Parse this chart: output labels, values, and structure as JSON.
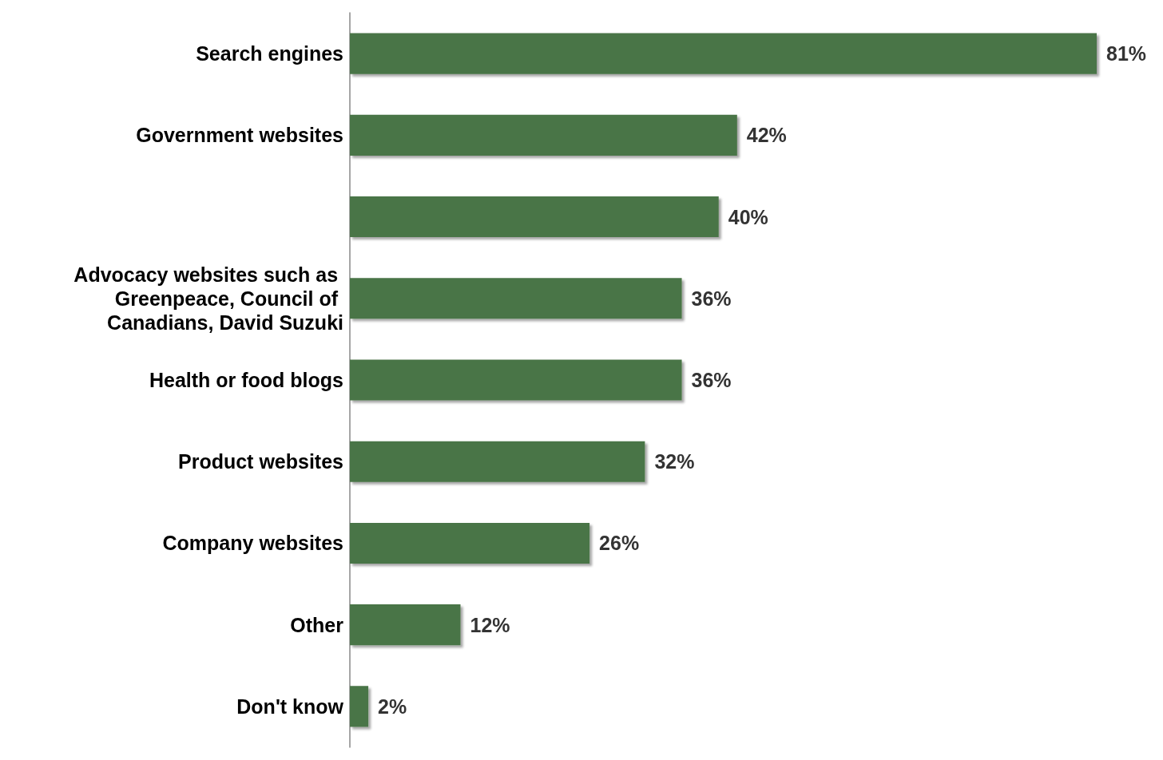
{
  "chart_data": {
    "type": "bar",
    "orientation": "horizontal",
    "categories": [
      "Search engines",
      "Government websites",
      null,
      "Advocacy websites such as Greenpeace, Council of Canadians, David Suzuki",
      "Health or food blogs",
      "Product websites",
      "Company websites",
      "Other",
      "Don't know"
    ],
    "values": [
      81,
      42,
      40,
      36,
      36,
      32,
      26,
      12,
      2
    ],
    "value_labels": [
      "81%",
      "42%",
      "40%",
      "36%",
      "36%",
      "32%",
      "26%",
      "12%",
      "2%"
    ],
    "color": "#4a7446"
  }
}
